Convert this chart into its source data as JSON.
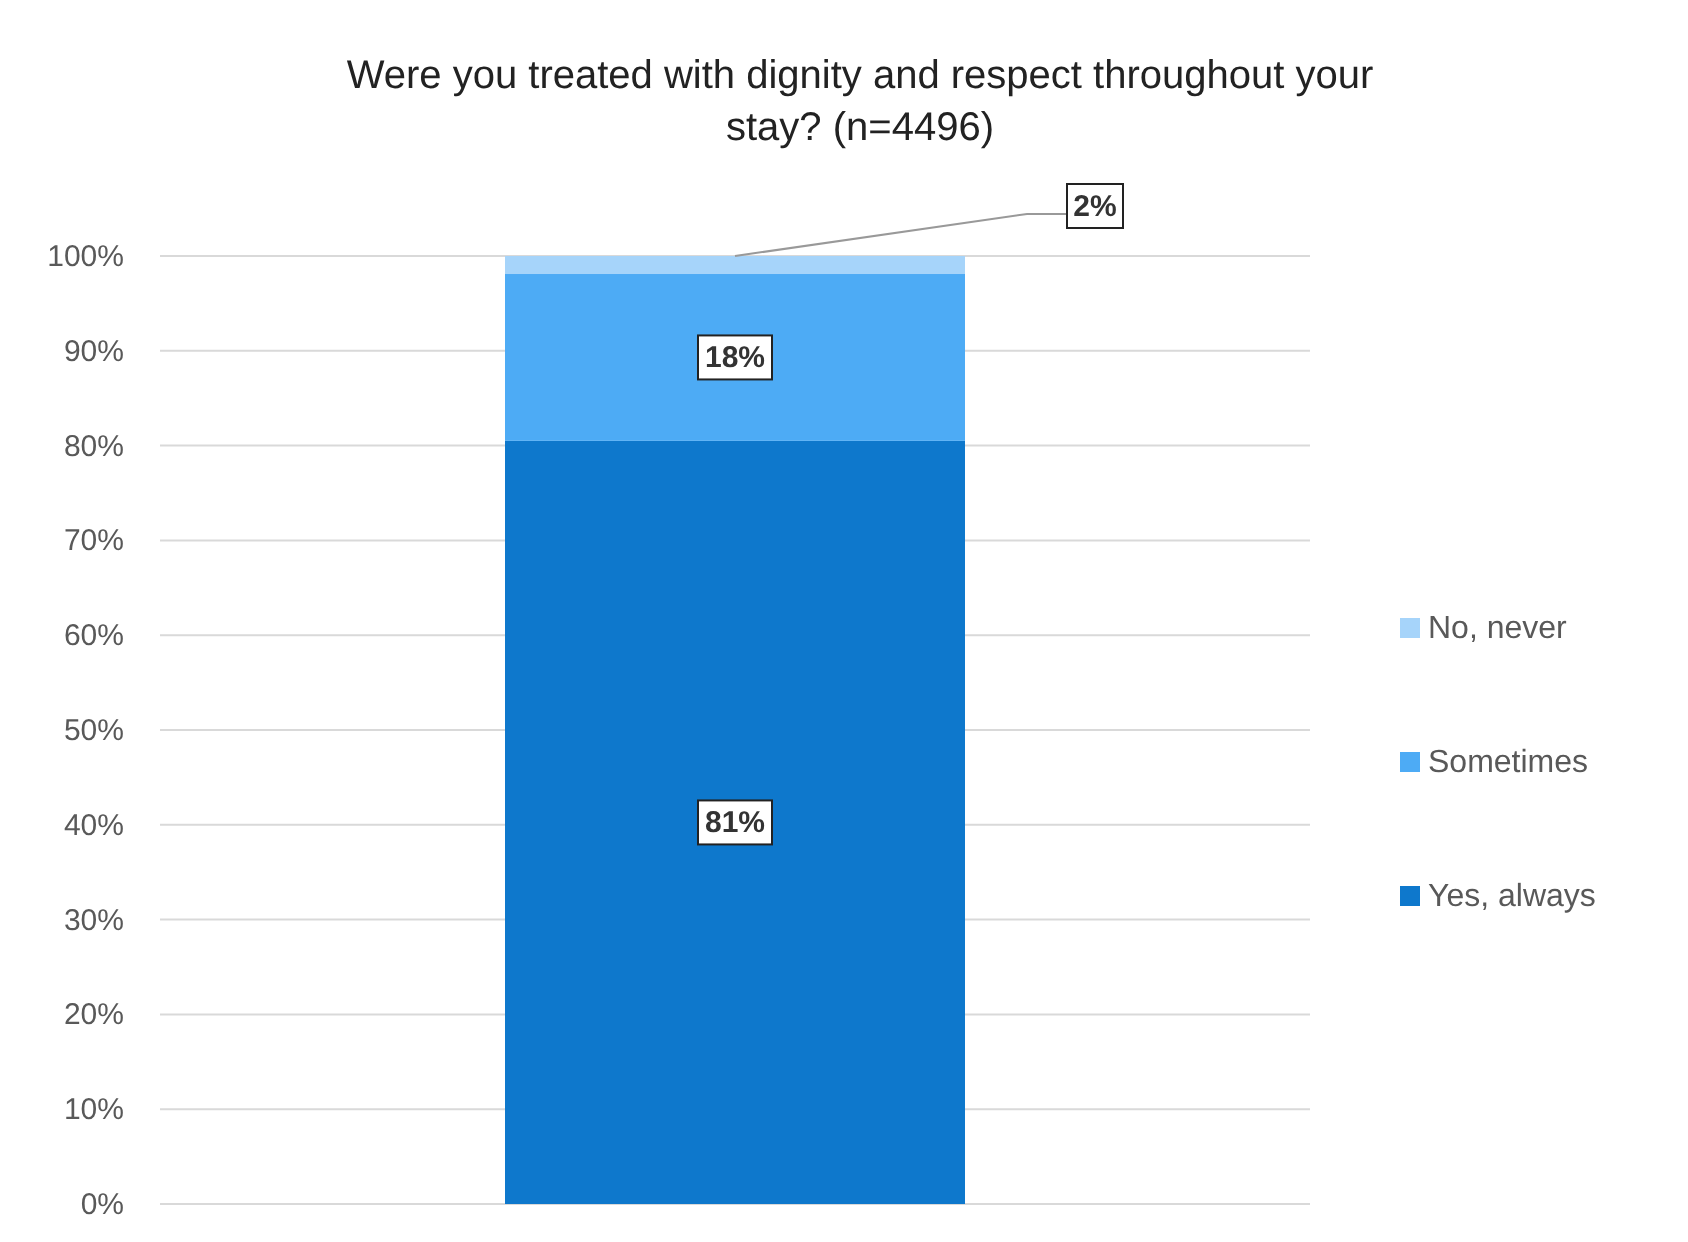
{
  "chart_data": {
    "type": "bar",
    "title": "Were you treated with dignity and respect throughout your stay? (n=4496)",
    "categories": [
      null
    ],
    "stacked": true,
    "ylim": [
      0,
      100
    ],
    "yticks": [
      {
        "value": 0,
        "label": "0%"
      },
      {
        "value": 10,
        "label": "10%"
      },
      {
        "value": 20,
        "label": "20%"
      },
      {
        "value": 30,
        "label": "30%"
      },
      {
        "value": 40,
        "label": "40%"
      },
      {
        "value": 50,
        "label": "50%"
      },
      {
        "value": 60,
        "label": "60%"
      },
      {
        "value": 70,
        "label": "70%"
      },
      {
        "value": 80,
        "label": "80%"
      },
      {
        "value": 90,
        "label": "90%"
      },
      {
        "value": 100,
        "label": "100%"
      }
    ],
    "series": [
      {
        "name": "Yes, always",
        "color": "#0e78cc",
        "values": [
          80.5
        ],
        "value_labels": [
          "81%"
        ]
      },
      {
        "name": "Sometimes",
        "color": "#4dabf5",
        "values": [
          17.6
        ],
        "value_labels": [
          "18%"
        ]
      },
      {
        "name": "No, never",
        "color": "#a6d4fa",
        "values": [
          1.9
        ],
        "value_labels": [
          "2%"
        ]
      }
    ],
    "grid": "y",
    "legend": "right"
  }
}
